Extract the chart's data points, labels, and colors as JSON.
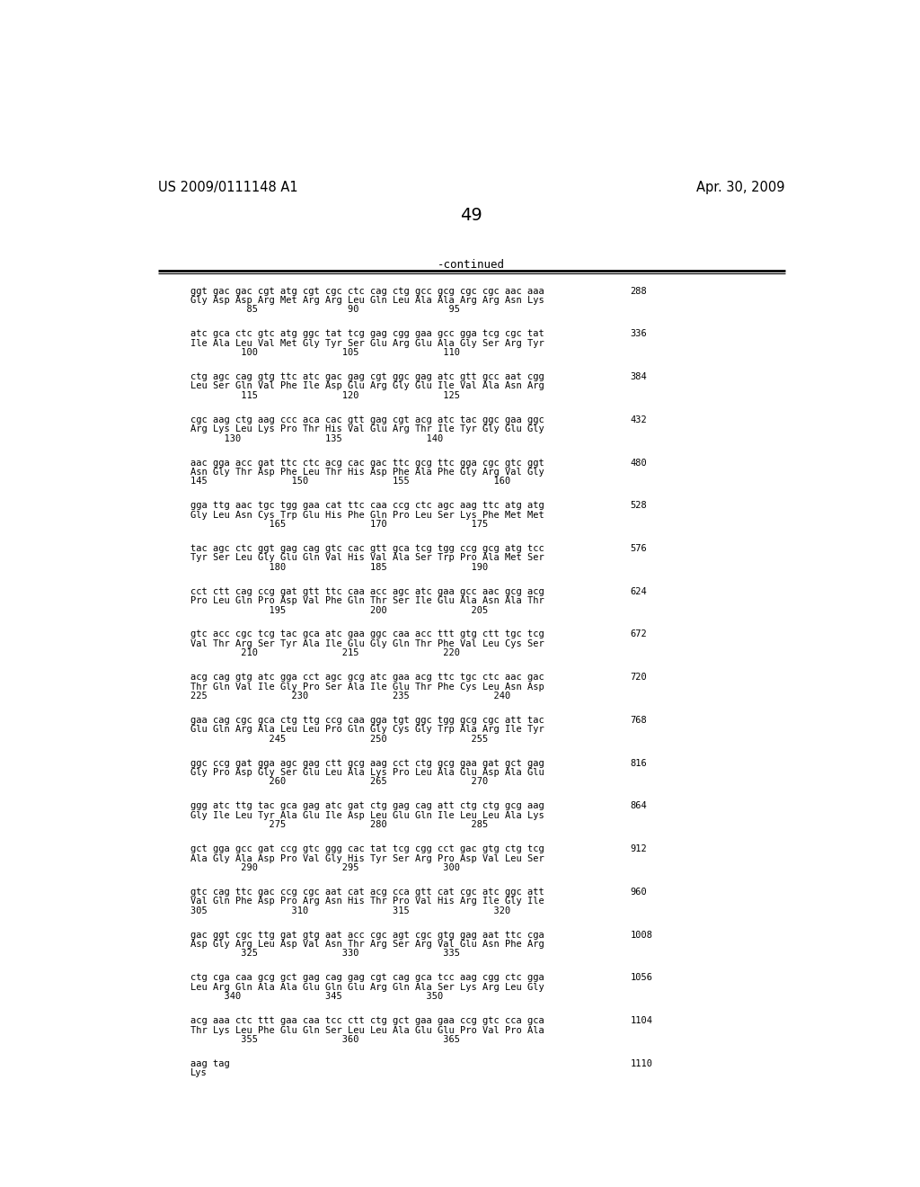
{
  "bg_color": "#ffffff",
  "header_left": "US 2009/0111148 A1",
  "header_right": "Apr. 30, 2009",
  "page_number": "49",
  "continued_label": "-continued",
  "content_blocks": [
    {
      "dna": "ggt gac gac cgt atg cgt cgc ctc cag ctg gcc gcg cgc cgc aac aaa",
      "aa": "Gly Asp Asp Arg Met Arg Arg Leu Gln Leu Ala Ala Arg Arg Asn Lys",
      "nums": "          85                90                95",
      "num_right": "288"
    },
    {
      "dna": "atc gca ctc gtc atg ggc tat tcg gag cgg gaa gcc gga tcg cgc tat",
      "aa": "Ile Ala Leu Val Met Gly Tyr Ser Glu Arg Glu Ala Gly Ser Arg Tyr",
      "nums": "         100               105               110",
      "num_right": "336"
    },
    {
      "dna": "ctg agc cag gtg ttc atc gac gag cgt ggc gag atc gtt gcc aat cgg",
      "aa": "Leu Ser Gln Val Phe Ile Asp Glu Arg Gly Glu Ile Val Ala Asn Arg",
      "nums": "         115               120               125",
      "num_right": "384"
    },
    {
      "dna": "cgc aag ctg aag ccc aca cac gtt gag cgt acg atc tac ggc gaa ggc",
      "aa": "Arg Lys Leu Lys Pro Thr His Val Glu Arg Thr Ile Tyr Gly Glu Gly",
      "nums": "      130               135               140",
      "num_right": "432"
    },
    {
      "dna": "aac gga acc gat ttc ctc acg cac gac ttc gcg ttc gga cgc gtc ggt",
      "aa": "Asn Gly Thr Asp Phe Leu Thr His Asp Phe Ala Phe Gly Arg Val Gly",
      "nums": "145               150               155               160",
      "num_right": "480"
    },
    {
      "dna": "gga ttg aac tgc tgg gaa cat ttc caa ccg ctc agc aag ttc atg atg",
      "aa": "Gly Leu Asn Cys Trp Glu His Phe Gln Pro Leu Ser Lys Phe Met Met",
      "nums": "              165               170               175",
      "num_right": "528"
    },
    {
      "dna": "tac agc ctc ggt gag cag gtc cac gtt gca tcg tgg ccg gcg atg tcc",
      "aa": "Tyr Ser Leu Gly Glu Gln Val His Val Ala Ser Trp Pro Ala Met Ser",
      "nums": "              180               185               190",
      "num_right": "576"
    },
    {
      "dna": "cct ctt cag ccg gat gtt ttc caa acc agc atc gaa gcc aac gcg acg",
      "aa": "Pro Leu Gln Pro Asp Val Phe Gln Thr Ser Ile Glu Ala Asn Ala Thr",
      "nums": "              195               200               205",
      "num_right": "624"
    },
    {
      "dna": "gtc acc cgc tcg tac gca atc gaa ggc caa acc ttt gtg ctt tgc tcg",
      "aa": "Val Thr Arg Ser Tyr Ala Ile Glu Gly Gln Thr Phe Val Leu Cys Ser",
      "nums": "         210               215               220",
      "num_right": "672"
    },
    {
      "dna": "acg cag gtg atc gga cct agc gcg atc gaa acg ttc tgc ctc aac gac",
      "aa": "Thr Gln Val Ile Gly Pro Ser Ala Ile Glu Thr Phe Cys Leu Asn Asp",
      "nums": "225               230               235               240",
      "num_right": "720"
    },
    {
      "dna": "gaa cag cgc gca ctg ttg ccg caa gga tgt ggc tgg gcg cgc att tac",
      "aa": "Glu Gln Arg Ala Leu Leu Pro Gln Gly Cys Gly Trp Ala Arg Ile Tyr",
      "nums": "              245               250               255",
      "num_right": "768"
    },
    {
      "dna": "ggc ccg gat gga agc gag ctt gcg aag cct ctg gcg gaa gat gct gag",
      "aa": "Gly Pro Asp Gly Ser Glu Leu Ala Lys Pro Leu Ala Glu Asp Ala Glu",
      "nums": "              260               265               270",
      "num_right": "816"
    },
    {
      "dna": "ggg atc ttg tac gca gag atc gat ctg gag cag att ctg ctg gcg aag",
      "aa": "Gly Ile Leu Tyr Ala Glu Ile Asp Leu Glu Gln Ile Leu Leu Ala Lys",
      "nums": "              275               280               285",
      "num_right": "864"
    },
    {
      "dna": "gct gga gcc gat ccg gtc ggg cac tat tcg cgg cct gac gtg ctg tcg",
      "aa": "Ala Gly Ala Asp Pro Val Gly His Tyr Ser Arg Pro Asp Val Leu Ser",
      "nums": "         290               295               300",
      "num_right": "912"
    },
    {
      "dna": "gtc cag ttc gac ccg cgc aat cat acg cca gtt cat cgc atc ggc att",
      "aa": "Val Gln Phe Asp Pro Arg Asn His Thr Pro Val His Arg Ile Gly Ile",
      "nums": "305               310               315               320",
      "num_right": "960"
    },
    {
      "dna": "gac ggt cgc ttg gat gtg aat acc cgc agt cgc gtg gag aat ttc cga",
      "aa": "Asp Gly Arg Leu Asp Val Asn Thr Arg Ser Arg Val Glu Asn Phe Arg",
      "nums": "         325               330               335",
      "num_right": "1008"
    },
    {
      "dna": "ctg cga caa gcg gct gag cag gag cgt cag gca tcc aag cgg ctc gga",
      "aa": "Leu Arg Gln Ala Ala Glu Gln Glu Arg Gln Ala Ser Lys Arg Leu Gly",
      "nums": "      340               345               350",
      "num_right": "1056"
    },
    {
      "dna": "acg aaa ctc ttt gaa caa tcc ctt ctg gct gaa gaa ccg gtc cca gca",
      "aa": "Thr Lys Leu Phe Glu Gln Ser Leu Leu Ala Glu Glu Pro Val Pro Ala",
      "nums": "         355               360               365",
      "num_right": "1104"
    },
    {
      "dna": "aag tag",
      "aa": "Lys",
      "nums": "",
      "num_right": "1110"
    }
  ]
}
